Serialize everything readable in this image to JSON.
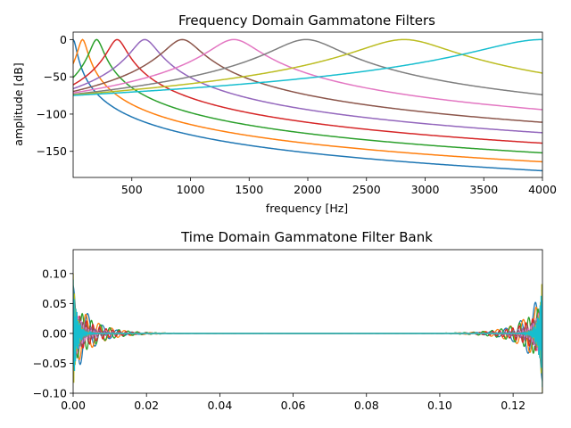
{
  "chart_data": [
    {
      "type": "line",
      "title": "Frequency Domain Gammatone Filters",
      "xlabel": "frequency [Hz]",
      "ylabel": "amplitude [dB]",
      "xlim": [
        0,
        4000
      ],
      "ylim": [
        -185,
        10
      ],
      "xticks": [
        500,
        1000,
        1500,
        2000,
        2500,
        3000,
        3500,
        4000
      ],
      "yticks": [
        0,
        -50,
        -100,
        -150
      ],
      "grid": false,
      "series": [
        {
          "color": "#1f77b4",
          "center_hz": 0,
          "end_db": -176
        },
        {
          "color": "#ff7f0e",
          "center_hz": 80,
          "end_db": -164
        },
        {
          "color": "#2ca02c",
          "center_hz": 200,
          "end_db": -152
        },
        {
          "color": "#d62728",
          "center_hz": 375,
          "end_db": -139
        },
        {
          "color": "#9467bd",
          "center_hz": 610,
          "end_db": -125
        },
        {
          "color": "#8c564b",
          "center_hz": 930,
          "end_db": -111
        },
        {
          "color": "#e377c2",
          "center_hz": 1370,
          "end_db": -94
        },
        {
          "color": "#7f7f7f",
          "center_hz": 1985,
          "end_db": -74
        },
        {
          "color": "#bcbd22",
          "center_hz": 2820,
          "end_db": -45
        },
        {
          "color": "#17becf",
          "center_hz": 4000,
          "end_db": 0
        }
      ]
    },
    {
      "type": "line",
      "title": "Time Domain Gammatone Filter Bank",
      "xlabel": "",
      "ylabel": "",
      "xlim": [
        0,
        0.128
      ],
      "ylim": [
        -0.1,
        0.14
      ],
      "xticks": [
        0.0,
        0.02,
        0.04,
        0.06,
        0.08,
        0.1,
        0.12
      ],
      "xticklabels": [
        "0.00",
        "0.02",
        "0.04",
        "0.06",
        "0.08",
        "0.10",
        "0.12"
      ],
      "yticks": [
        0.1,
        0.05,
        0.0,
        -0.05,
        -0.1
      ],
      "yticklabels": [
        "0.10",
        "0.05",
        "0.00",
        "−0.05",
        "−0.10"
      ],
      "grid": false,
      "series": [
        {
          "color": "#1f77b4",
          "peak": 0.08,
          "tau_s": 0.0045,
          "period_s": 0.004
        },
        {
          "color": "#ff7f0e",
          "peak": 0.06,
          "tau_s": 0.0055,
          "period_s": 0.0035
        },
        {
          "color": "#2ca02c",
          "peak": 0.05,
          "tau_s": 0.006,
          "period_s": 0.0025
        },
        {
          "color": "#d62728",
          "peak": 0.04,
          "tau_s": 0.0055,
          "period_s": 0.0018
        },
        {
          "color": "#9467bd",
          "peak": 0.03,
          "tau_s": 0.0042,
          "period_s": 0.0012
        },
        {
          "color": "#8c564b",
          "peak": 0.05,
          "tau_s": 0.0028,
          "period_s": 0.0009
        },
        {
          "color": "#e377c2",
          "peak": 0.06,
          "tau_s": 0.002,
          "period_s": 0.0007
        },
        {
          "color": "#7f7f7f",
          "peak": 0.07,
          "tau_s": 0.0015,
          "period_s": 0.0005
        },
        {
          "color": "#bcbd22",
          "peak": 0.1,
          "tau_s": 0.001,
          "period_s": 0.00035
        },
        {
          "color": "#17becf",
          "peak": 0.09,
          "tau_s": 0.0011,
          "period_s": 0.00025
        }
      ]
    }
  ]
}
